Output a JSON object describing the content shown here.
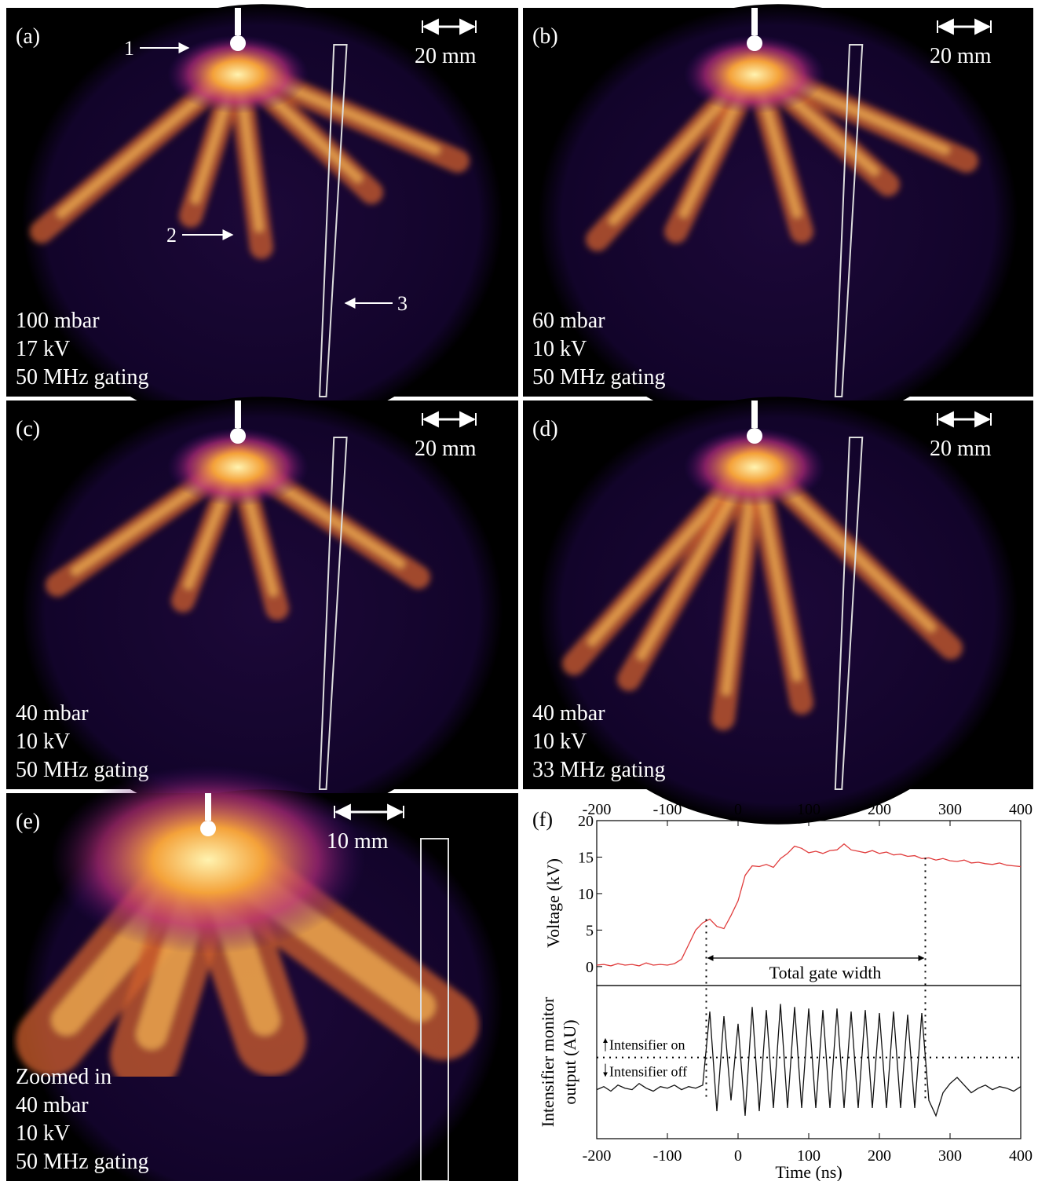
{
  "panels": [
    {
      "label": "(a)",
      "scale": "20 mm",
      "lines": [
        "100 mbar",
        "17 kV",
        "50 MHz gating"
      ],
      "markers": [
        "1",
        "2",
        "3"
      ]
    },
    {
      "label": "(b)",
      "scale": "20 mm",
      "lines": [
        "60 mbar",
        "10 kV",
        "50 MHz gating"
      ]
    },
    {
      "label": "(c)",
      "scale": "20 mm",
      "lines": [
        "40 mbar",
        "10 kV",
        "50 MHz gating"
      ]
    },
    {
      "label": "(d)",
      "scale": "20 mm",
      "lines": [
        "40 mbar",
        "10 kV",
        "33 MHz gating"
      ]
    },
    {
      "label": "(e)",
      "scale": "10 mm",
      "lines": [
        "Zoomed in",
        "40 mbar",
        "10 kV",
        "50 MHz gating"
      ]
    }
  ],
  "chart_label": "(f)",
  "chart_data": [
    {
      "type": "line",
      "y_label": "Voltage (kV)",
      "annotation": "Total gate width",
      "x": [
        -200,
        -190,
        -180,
        -170,
        -160,
        -150,
        -140,
        -130,
        -120,
        -110,
        -100,
        -90,
        -80,
        -70,
        -60,
        -50,
        -40,
        -30,
        -20,
        -10,
        0,
        10,
        20,
        30,
        40,
        50,
        60,
        70,
        80,
        90,
        100,
        110,
        120,
        130,
        140,
        150,
        160,
        170,
        180,
        190,
        200,
        210,
        220,
        230,
        240,
        250,
        260,
        270,
        280,
        290,
        300,
        310,
        320,
        330,
        340,
        350,
        360,
        370,
        380,
        390,
        400
      ],
      "series": [
        {
          "color": "#e03c3c",
          "values": [
            0.2,
            0.3,
            0.1,
            0.4,
            0.2,
            0.3,
            0.1,
            0.5,
            0.2,
            0.3,
            0.2,
            0.4,
            1.0,
            3.0,
            5.0,
            6.0,
            6.5,
            5.5,
            5.2,
            7.0,
            9.0,
            12.5,
            13.8,
            13.7,
            14.0,
            13.6,
            14.8,
            15.5,
            16.5,
            16.2,
            15.6,
            15.8,
            15.5,
            15.9,
            16.0,
            16.8,
            16.0,
            15.8,
            15.6,
            15.9,
            15.5,
            15.7,
            15.3,
            15.4,
            15.1,
            15.2,
            14.8,
            14.9,
            14.6,
            14.8,
            14.5,
            14.4,
            14.6,
            14.2,
            14.3,
            14.1,
            14.0,
            14.2,
            13.9,
            13.8,
            13.7
          ]
        }
      ],
      "gate": [
        -45,
        265
      ],
      "xlim": [
        -200,
        400
      ],
      "xticks": [
        -200,
        -100,
        0,
        100,
        200,
        300,
        400
      ],
      "ylim": [
        -2.6,
        20
      ],
      "yticks": [
        0,
        5,
        10,
        15,
        20
      ]
    },
    {
      "type": "line",
      "x_label": "Time (ns)",
      "y_label_lines": [
        "Intensifier monitor",
        "output (AU)"
      ],
      "on_label": "Intensifier on",
      "off_label": "Intensifier off",
      "x": [
        -200,
        -190,
        -180,
        -170,
        -160,
        -150,
        -140,
        -130,
        -120,
        -110,
        -100,
        -90,
        -80,
        -70,
        -60,
        -50,
        -40,
        -30,
        -20,
        -10,
        0,
        10,
        20,
        30,
        40,
        50,
        60,
        70,
        80,
        90,
        100,
        110,
        120,
        130,
        140,
        150,
        160,
        170,
        180,
        190,
        200,
        210,
        220,
        230,
        240,
        250,
        260,
        270,
        280,
        290,
        300,
        310,
        320,
        330,
        340,
        350,
        360,
        370,
        380,
        390,
        400
      ],
      "series": [
        {
          "color": "#111111",
          "values": [
            3.2,
            3.4,
            3.1,
            3.5,
            3.3,
            3.2,
            3.6,
            3.3,
            3.1,
            3.4,
            3.3,
            3.5,
            3.2,
            3.4,
            3.3,
            3.5,
            8.3,
            1.8,
            8.0,
            2.5,
            7.5,
            1.5,
            8.6,
            1.8,
            8.4,
            2,
            8.8,
            2,
            8.6,
            2,
            8.5,
            2,
            8.4,
            2,
            8.5,
            2,
            8.3,
            2,
            8.4,
            2,
            8.2,
            2,
            8.3,
            2,
            8.1,
            2,
            8.2,
            2.5,
            1.5,
            3.0,
            3.6,
            4.0,
            3.5,
            3.0,
            3.3,
            3.5,
            3.2,
            3.4,
            3.3,
            3.1,
            3.4
          ]
        }
      ],
      "threshold": 5.3,
      "xlim": [
        -200,
        400
      ],
      "xticks": [
        -200,
        -100,
        0,
        100,
        200,
        300,
        400
      ],
      "ylim": [
        0,
        10
      ]
    }
  ]
}
